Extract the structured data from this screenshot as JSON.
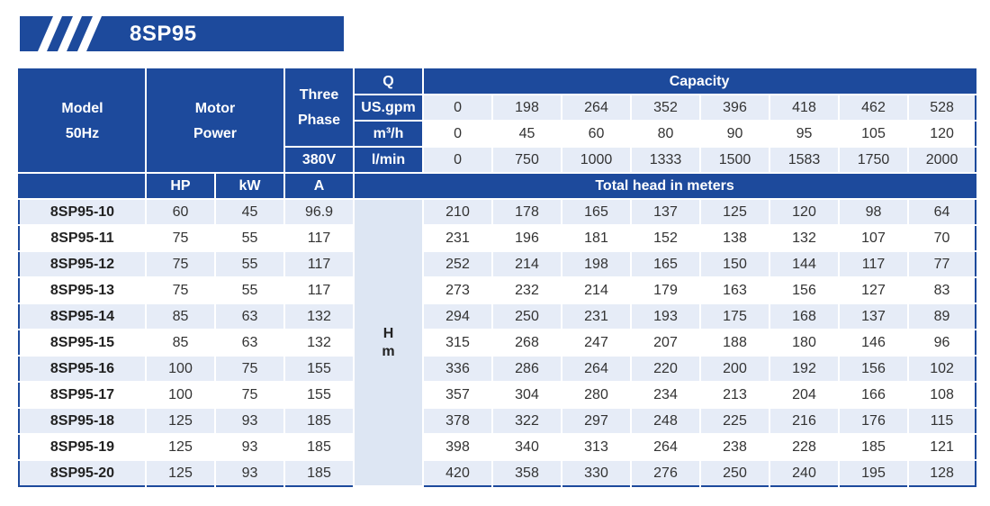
{
  "title": "8SP95",
  "header": {
    "model": [
      "Model",
      "50Hz"
    ],
    "motor_power": [
      "Motor",
      "Power"
    ],
    "three_phase": [
      "Three",
      "Phase"
    ],
    "voltage": "380V",
    "q": "Q",
    "capacity": "Capacity",
    "units": [
      {
        "unit": "US.gpm",
        "values": [
          "0",
          "198",
          "264",
          "352",
          "396",
          "418",
          "462",
          "528"
        ]
      },
      {
        "unit": "m³/h",
        "values": [
          "0",
          "45",
          "60",
          "80",
          "90",
          "95",
          "105",
          "120"
        ]
      },
      {
        "unit": "l/min",
        "values": [
          "0",
          "750",
          "1000",
          "1333",
          "1500",
          "1583",
          "1750",
          "2000"
        ]
      }
    ],
    "hp": "HP",
    "kw": "kW",
    "amp": "A",
    "total_head": "Total head in meters",
    "h_label": [
      "H",
      "m"
    ]
  },
  "rows": [
    {
      "model": "8SP95-10",
      "hp": "60",
      "kw": "45",
      "a": "96.9",
      "head": [
        "210",
        "178",
        "165",
        "137",
        "125",
        "120",
        "98",
        "64"
      ]
    },
    {
      "model": "8SP95-11",
      "hp": "75",
      "kw": "55",
      "a": "117",
      "head": [
        "231",
        "196",
        "181",
        "152",
        "138",
        "132",
        "107",
        "70"
      ]
    },
    {
      "model": "8SP95-12",
      "hp": "75",
      "kw": "55",
      "a": "117",
      "head": [
        "252",
        "214",
        "198",
        "165",
        "150",
        "144",
        "117",
        "77"
      ]
    },
    {
      "model": "8SP95-13",
      "hp": "75",
      "kw": "55",
      "a": "117",
      "head": [
        "273",
        "232",
        "214",
        "179",
        "163",
        "156",
        "127",
        "83"
      ]
    },
    {
      "model": "8SP95-14",
      "hp": "85",
      "kw": "63",
      "a": "132",
      "head": [
        "294",
        "250",
        "231",
        "193",
        "175",
        "168",
        "137",
        "89"
      ]
    },
    {
      "model": "8SP95-15",
      "hp": "85",
      "kw": "63",
      "a": "132",
      "head": [
        "315",
        "268",
        "247",
        "207",
        "188",
        "180",
        "146",
        "96"
      ]
    },
    {
      "model": "8SP95-16",
      "hp": "100",
      "kw": "75",
      "a": "155",
      "head": [
        "336",
        "286",
        "264",
        "220",
        "200",
        "192",
        "156",
        "102"
      ]
    },
    {
      "model": "8SP95-17",
      "hp": "100",
      "kw": "75",
      "a": "155",
      "head": [
        "357",
        "304",
        "280",
        "234",
        "213",
        "204",
        "166",
        "108"
      ]
    },
    {
      "model": "8SP95-18",
      "hp": "125",
      "kw": "93",
      "a": "185",
      "head": [
        "378",
        "322",
        "297",
        "248",
        "225",
        "216",
        "176",
        "115"
      ]
    },
    {
      "model": "8SP95-19",
      "hp": "125",
      "kw": "93",
      "a": "185",
      "head": [
        "398",
        "340",
        "313",
        "264",
        "238",
        "228",
        "185",
        "121"
      ]
    },
    {
      "model": "8SP95-20",
      "hp": "125",
      "kw": "93",
      "a": "185",
      "head": [
        "420",
        "358",
        "330",
        "276",
        "250",
        "240",
        "195",
        "128"
      ]
    }
  ],
  "colors": {
    "primary": "#1d4a9c",
    "row_alt": "#e6ecf7",
    "h_column": "#dde6f3"
  }
}
